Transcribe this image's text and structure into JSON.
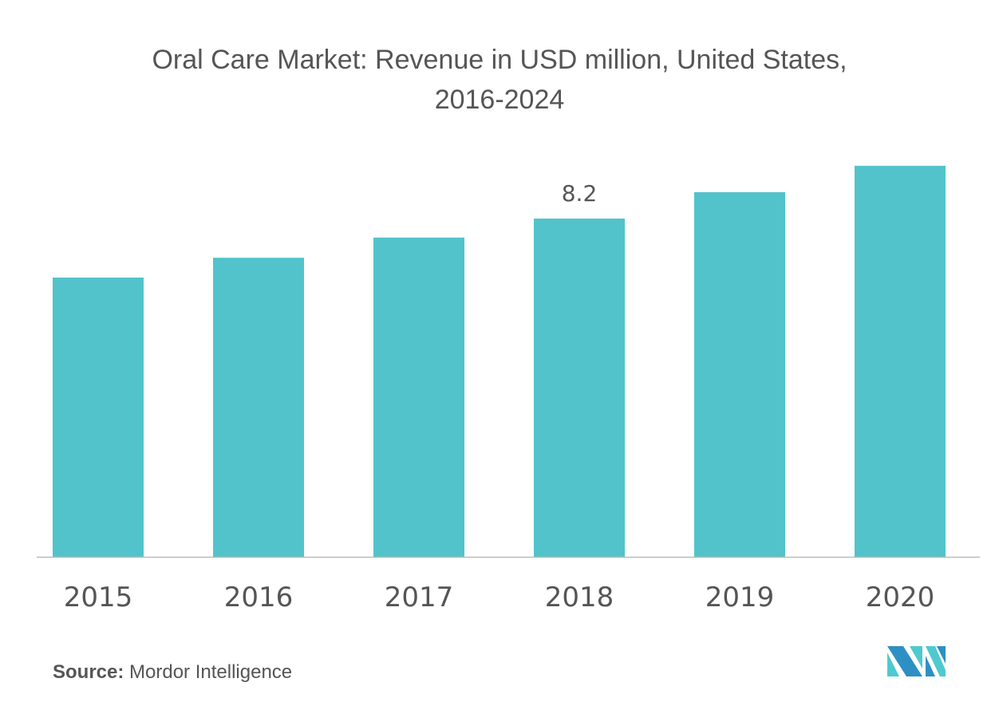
{
  "chart_data": {
    "type": "bar",
    "title": "Oral Care Market: Revenue in USD million, United States, 2016-2024",
    "categories": [
      "2015",
      "2016",
      "2017",
      "2018",
      "2019",
      "2020"
    ],
    "values": [
      6.77,
      7.25,
      7.74,
      8.2,
      8.84,
      9.48
    ],
    "data_labels": [
      null,
      null,
      null,
      "8.2",
      null,
      null
    ],
    "xlabel": "",
    "ylabel": "",
    "ylim": [
      0,
      10
    ],
    "grid": false,
    "bar_color": "#52c3ca",
    "axis_color": "#bbbbbb"
  },
  "source": {
    "label": "Source:",
    "value": "Mordor Intelligence"
  },
  "logo": {
    "colors": [
      "#2e8fc4",
      "#4fc9cf"
    ]
  }
}
